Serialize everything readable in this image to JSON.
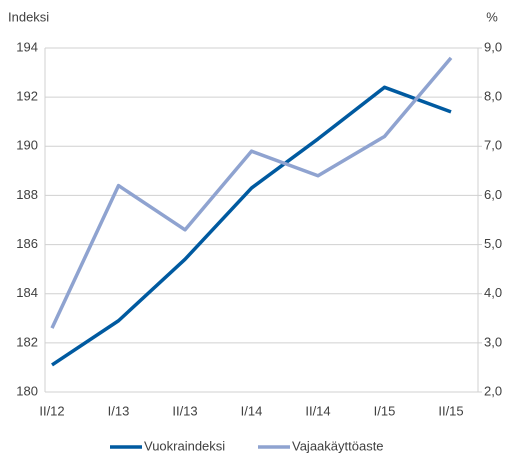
{
  "chart_data": {
    "type": "line",
    "ylabel": "Indeksi",
    "y2label": "%",
    "categories": [
      "II/12",
      "I/13",
      "II/13",
      "I/14",
      "II/14",
      "I/15",
      "II/15"
    ],
    "series": [
      {
        "name": "Vuokraindeksi",
        "color": "#005aa0",
        "values": [
          181.1,
          182.9,
          185.4,
          188.3,
          190.3,
          192.4,
          191.4
        ]
      },
      {
        "name": "Vajaakäyttöaste",
        "color": "#8fa3d0",
        "axis": "y2",
        "values": [
          3.3,
          6.2,
          5.3,
          6.9,
          6.4,
          7.2,
          8.8
        ]
      }
    ],
    "ylim": [
      180,
      194
    ],
    "yticks": [
      180,
      182,
      184,
      186,
      188,
      190,
      192,
      194
    ],
    "y2lim": [
      2,
      9
    ],
    "y2ticks": [
      {
        "value": 2,
        "label": "2,0"
      },
      {
        "value": 3,
        "label": "3,0"
      },
      {
        "value": 4,
        "label": "4,0"
      },
      {
        "value": 5,
        "label": "5,0"
      },
      {
        "value": 6,
        "label": "6,0"
      },
      {
        "value": 7,
        "label": "7,0"
      },
      {
        "value": 8,
        "label": "8,0"
      },
      {
        "value": 9,
        "label": "9,0"
      }
    ],
    "grid": true
  }
}
